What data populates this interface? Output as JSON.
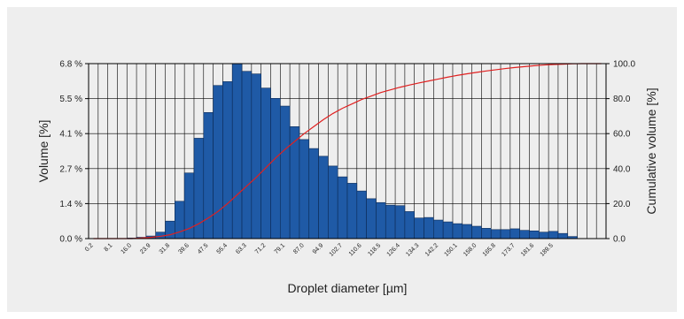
{
  "chart_data": {
    "type": "bar",
    "title": "",
    "xlabel": "Droplet diameter [µm]",
    "ylabel": "Volume [%]",
    "y2label": "Cumulative volume [%]",
    "ylim": [
      0,
      6.8
    ],
    "y2lim": [
      0,
      100
    ],
    "yticks": [
      "0.0 %",
      "1.4 %",
      "2.7 %",
      "4.1 %",
      "5.5 %",
      "6.8 %"
    ],
    "y2ticks": [
      "0.0",
      "20.0",
      "40.0",
      "60.0",
      "80.0",
      "100.0"
    ],
    "xticks": [
      "0.2",
      "8.1",
      "16.0",
      "23.9",
      "31.8",
      "39.6",
      "47.5",
      "55.4",
      "63.3",
      "71.2",
      "79.1",
      "87.0",
      "94.9",
      "102.7",
      "110.6",
      "118.5",
      "126.4",
      "134.3",
      "142.2",
      "150.1",
      "158.0",
      "165.8",
      "173.7",
      "181.6",
      "189.5"
    ],
    "grid": true,
    "colors": {
      "bars": "#1f5aa6",
      "cumulative": "#e02020"
    },
    "series": [
      {
        "kind": "bar",
        "values": [
          0,
          0,
          0,
          0,
          0.02,
          0.05,
          0.1,
          0.25,
          0.68,
          1.45,
          2.55,
          3.9,
          4.9,
          5.95,
          6.1,
          6.8,
          6.5,
          6.4,
          5.85,
          5.45,
          5.15,
          4.35,
          3.85,
          3.5,
          3.2,
          2.82,
          2.4,
          2.15,
          1.85,
          1.55,
          1.4,
          1.3,
          1.28,
          1.05,
          0.8,
          0.82,
          0.72,
          0.65,
          0.58,
          0.55,
          0.48,
          0.4,
          0.35,
          0.35,
          0.38,
          0.32,
          0.3,
          0.25,
          0.28,
          0.2,
          0.08,
          0,
          0,
          0
        ]
      },
      {
        "kind": "line",
        "axis": "right",
        "values": [
          0,
          0,
          0,
          0,
          0,
          0.3,
          0.7,
          1.3,
          2.2,
          3.8,
          5.8,
          8.5,
          11.8,
          15.5,
          20,
          25,
          30,
          35,
          40.5,
          46,
          51,
          55.5,
          60,
          64,
          68,
          71.5,
          74.5,
          77,
          79.5,
          81.5,
          83.5,
          85,
          86.5,
          87.8,
          89,
          90.1,
          91.2,
          92.3,
          93.3,
          94.2,
          95,
          95.8,
          96.5,
          97.2,
          97.8,
          98.3,
          98.8,
          99.2,
          99.5,
          99.7,
          99.9,
          100,
          100,
          100
        ]
      }
    ]
  }
}
